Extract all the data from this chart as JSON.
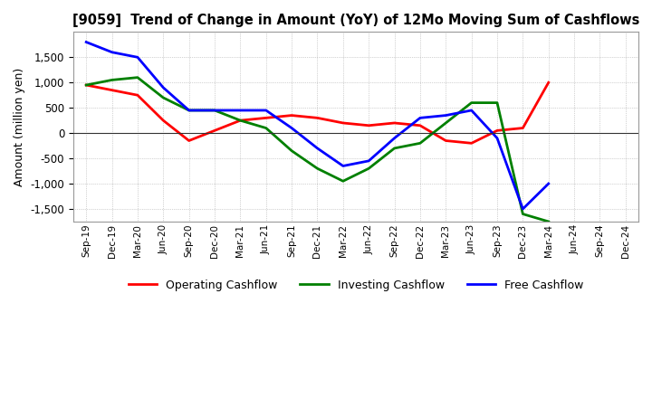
{
  "title": "[9059]  Trend of Change in Amount (YoY) of 12Mo Moving Sum of Cashflows",
  "ylabel": "Amount (million yen)",
  "ylim": [
    -1750,
    2000
  ],
  "yticks": [
    -1500,
    -1000,
    -500,
    0,
    500,
    1000,
    1500
  ],
  "background_color": "#ffffff",
  "grid_color": "#aaaaaa",
  "labels": [
    "Sep-19",
    "Dec-19",
    "Mar-20",
    "Jun-20",
    "Sep-20",
    "Dec-20",
    "Mar-21",
    "Jun-21",
    "Sep-21",
    "Dec-21",
    "Mar-22",
    "Jun-22",
    "Sep-22",
    "Dec-22",
    "Mar-23",
    "Jun-23",
    "Sep-23",
    "Dec-23",
    "Mar-24",
    "Jun-24",
    "Sep-24",
    "Dec-24"
  ],
  "operating": [
    950,
    850,
    750,
    250,
    -150,
    50,
    250,
    300,
    350,
    300,
    200,
    150,
    200,
    150,
    -150,
    -200,
    50,
    100,
    1000,
    null,
    null,
    null
  ],
  "investing": [
    950,
    1050,
    1100,
    700,
    450,
    450,
    250,
    100,
    -350,
    -700,
    -950,
    -700,
    -300,
    -200,
    200,
    600,
    600,
    -1600,
    -1750,
    null,
    null,
    null
  ],
  "free": [
    1800,
    1600,
    1500,
    900,
    450,
    450,
    450,
    450,
    100,
    -300,
    -650,
    -550,
    -100,
    300,
    350,
    450,
    -100,
    -1500,
    -1000,
    null,
    null,
    null
  ],
  "operating_color": "#ff0000",
  "investing_color": "#008000",
  "free_color": "#0000ff",
  "legend_labels": [
    "Operating Cashflow",
    "Investing Cashflow",
    "Free Cashflow"
  ]
}
